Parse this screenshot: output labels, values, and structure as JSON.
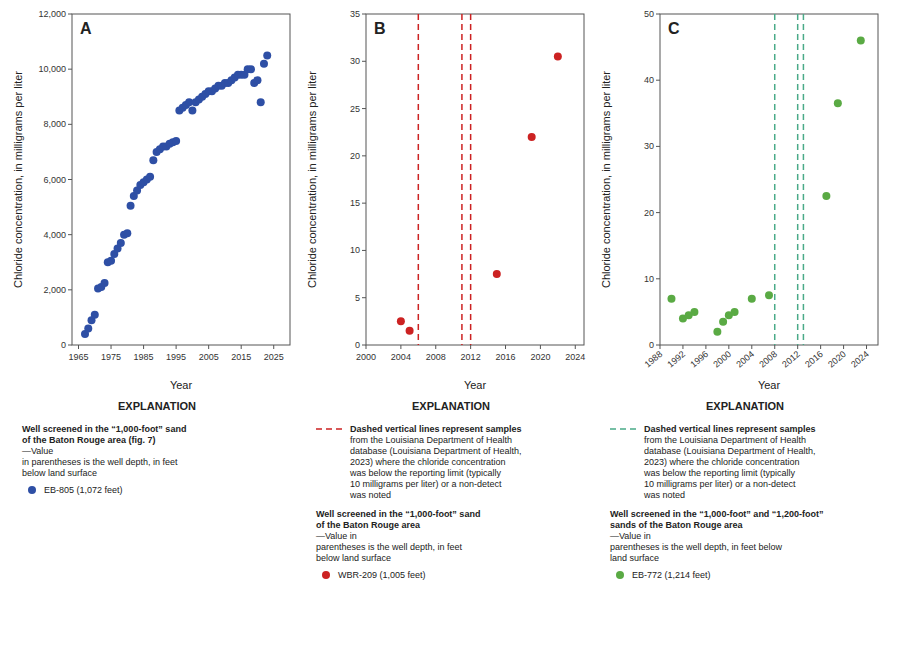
{
  "chart_data": [
    {
      "type": "scatter",
      "title": "A",
      "xlabel": "Year",
      "ylabel": "Chloride concentration, in milligrams per liter",
      "xlim": [
        1963,
        2030
      ],
      "ylim": [
        0,
        12000
      ],
      "xticks": [
        1965,
        1975,
        1985,
        1995,
        2005,
        2015,
        2025
      ],
      "yticks": [
        0,
        {
          "value": 2000,
          "label": "2,000"
        },
        {
          "value": 4000,
          "label": "4,000"
        },
        {
          "value": 6000,
          "label": "6,000"
        },
        {
          "value": 8000,
          "label": "8,000"
        },
        {
          "value": 10000,
          "label": "10,000"
        },
        {
          "value": 12000,
          "label": "12,000"
        }
      ],
      "grid": false,
      "series": [
        {
          "name": "EB-805 (1,072 feet)",
          "type": "scatter",
          "color": "#2e4fa5",
          "marker": "circle",
          "x": [
            1967,
            1968,
            1969,
            1970,
            1971,
            1972,
            1973,
            1974,
            1975,
            1976,
            1977,
            1978,
            1979,
            1980,
            1981,
            1982,
            1983,
            1984,
            1985,
            1986,
            1987,
            1988,
            1989,
            1990,
            1991,
            1992,
            1993,
            1994,
            1995,
            1996,
            1997,
            1998,
            1999,
            2000,
            2001,
            2002,
            2003,
            2004,
            2005,
            2006,
            2007,
            2008,
            2009,
            2010,
            2011,
            2012,
            2013,
            2014,
            2015,
            2016,
            2017,
            2018,
            2019,
            2020,
            2021,
            2022,
            2023
          ],
          "values": [
            400,
            600,
            900,
            1100,
            2050,
            2100,
            2250,
            3000,
            3050,
            3300,
            3500,
            3700,
            4000,
            4050,
            5050,
            5400,
            5600,
            5800,
            5900,
            6000,
            6100,
            6700,
            7000,
            7100,
            7200,
            7200,
            7300,
            7350,
            7400,
            8500,
            8600,
            8700,
            8800,
            8500,
            8800,
            8900,
            9000,
            9100,
            9200,
            9200,
            9300,
            9400,
            9400,
            9500,
            9500,
            9600,
            9700,
            9800,
            9800,
            9800,
            10000,
            10000,
            9500,
            9600,
            8800,
            10200,
            10500
          ]
        }
      ],
      "annotations": [
        "EXPLANATION",
        "Well screened in the “1,000-foot” sand\nof the Baton Rouge area (fig. 7)",
        "—Value\nin parentheses is the well depth, in feet\nbelow land surface"
      ]
    },
    {
      "type": "scatter",
      "title": "B",
      "xlabel": "Year",
      "ylabel": "Chloride concentration, in milligrams per liter",
      "xlim": [
        2000,
        2025
      ],
      "ylim": [
        0,
        35
      ],
      "xticks": [
        2000,
        2004,
        2008,
        2012,
        2016,
        2020,
        2024
      ],
      "yticks": [
        0,
        5,
        10,
        15,
        20,
        25,
        30,
        35
      ],
      "grid": false,
      "series": [
        {
          "name": "Dashed vertical lines represent samples",
          "type": "vline",
          "color": "#cc2222",
          "line_style": "dashed",
          "x": [
            2006,
            2011,
            2012
          ]
        },
        {
          "name": "WBR-209 (1,005 feet)",
          "type": "scatter",
          "color": "#cc2222",
          "marker": "circle",
          "x": [
            2004,
            2005,
            2015,
            2019,
            2022
          ],
          "values": [
            2.5,
            1.5,
            7.5,
            22.0,
            30.5
          ]
        }
      ],
      "annotations": [
        "EXPLANATION",
        "from the Louisiana Department of Health\ndatabase (Louisiana Department of Health,\n2023) where the chloride concentration\nwas below the reporting limit (typically\n10 milligrams per liter) or a non-detect\nwas noted",
        "Well screened in the “1,000-foot” sand\nof the Baton Rouge area",
        "—Value in\nparentheses is the well depth, in feet\nbelow land surface"
      ]
    },
    {
      "type": "scatter",
      "title": "C",
      "xlabel": "Year",
      "ylabel": "Chloride concentration, in milligrams per liter",
      "xlim": [
        1988,
        2026
      ],
      "ylim": [
        0,
        50
      ],
      "xticks": [
        1988,
        1992,
        1996,
        2000,
        2004,
        2008,
        2012,
        2016,
        2020,
        2024
      ],
      "yticks": [
        0,
        10,
        20,
        30,
        40,
        50
      ],
      "grid": false,
      "series": [
        {
          "name": "Dashed vertical lines represent samples",
          "type": "vline",
          "color": "#4aaa88",
          "line_style": "dashed",
          "x": [
            2008,
            2012,
            2013
          ]
        },
        {
          "name": "EB-772 (1,214 feet)",
          "type": "scatter",
          "color": "#5aaa44",
          "marker": "circle",
          "x": [
            1990,
            1992,
            1993,
            1994,
            1998,
            1999,
            2000,
            2001,
            2004,
            2007,
            2017,
            2019,
            2023
          ],
          "values": [
            7.0,
            4.0,
            4.5,
            5.0,
            2.0,
            3.5,
            4.5,
            5.0,
            7.0,
            7.5,
            22.5,
            36.5,
            46.0
          ]
        }
      ],
      "annotations": [
        "EXPLANATION",
        "from the Louisiana Department of Health\ndatabase (Louisiana Department of Health,\n2023) where the chloride concentration\nwas below the reporting limit (typically\n10 milligrams per liter) or a non-detect\nwas noted",
        "Well screened in the “1,000-foot” and “1,200-foot”\nsands of the Baton Rouge area",
        "—Value in\nparentheses is the well depth, in feet below\nland surface"
      ]
    }
  ]
}
